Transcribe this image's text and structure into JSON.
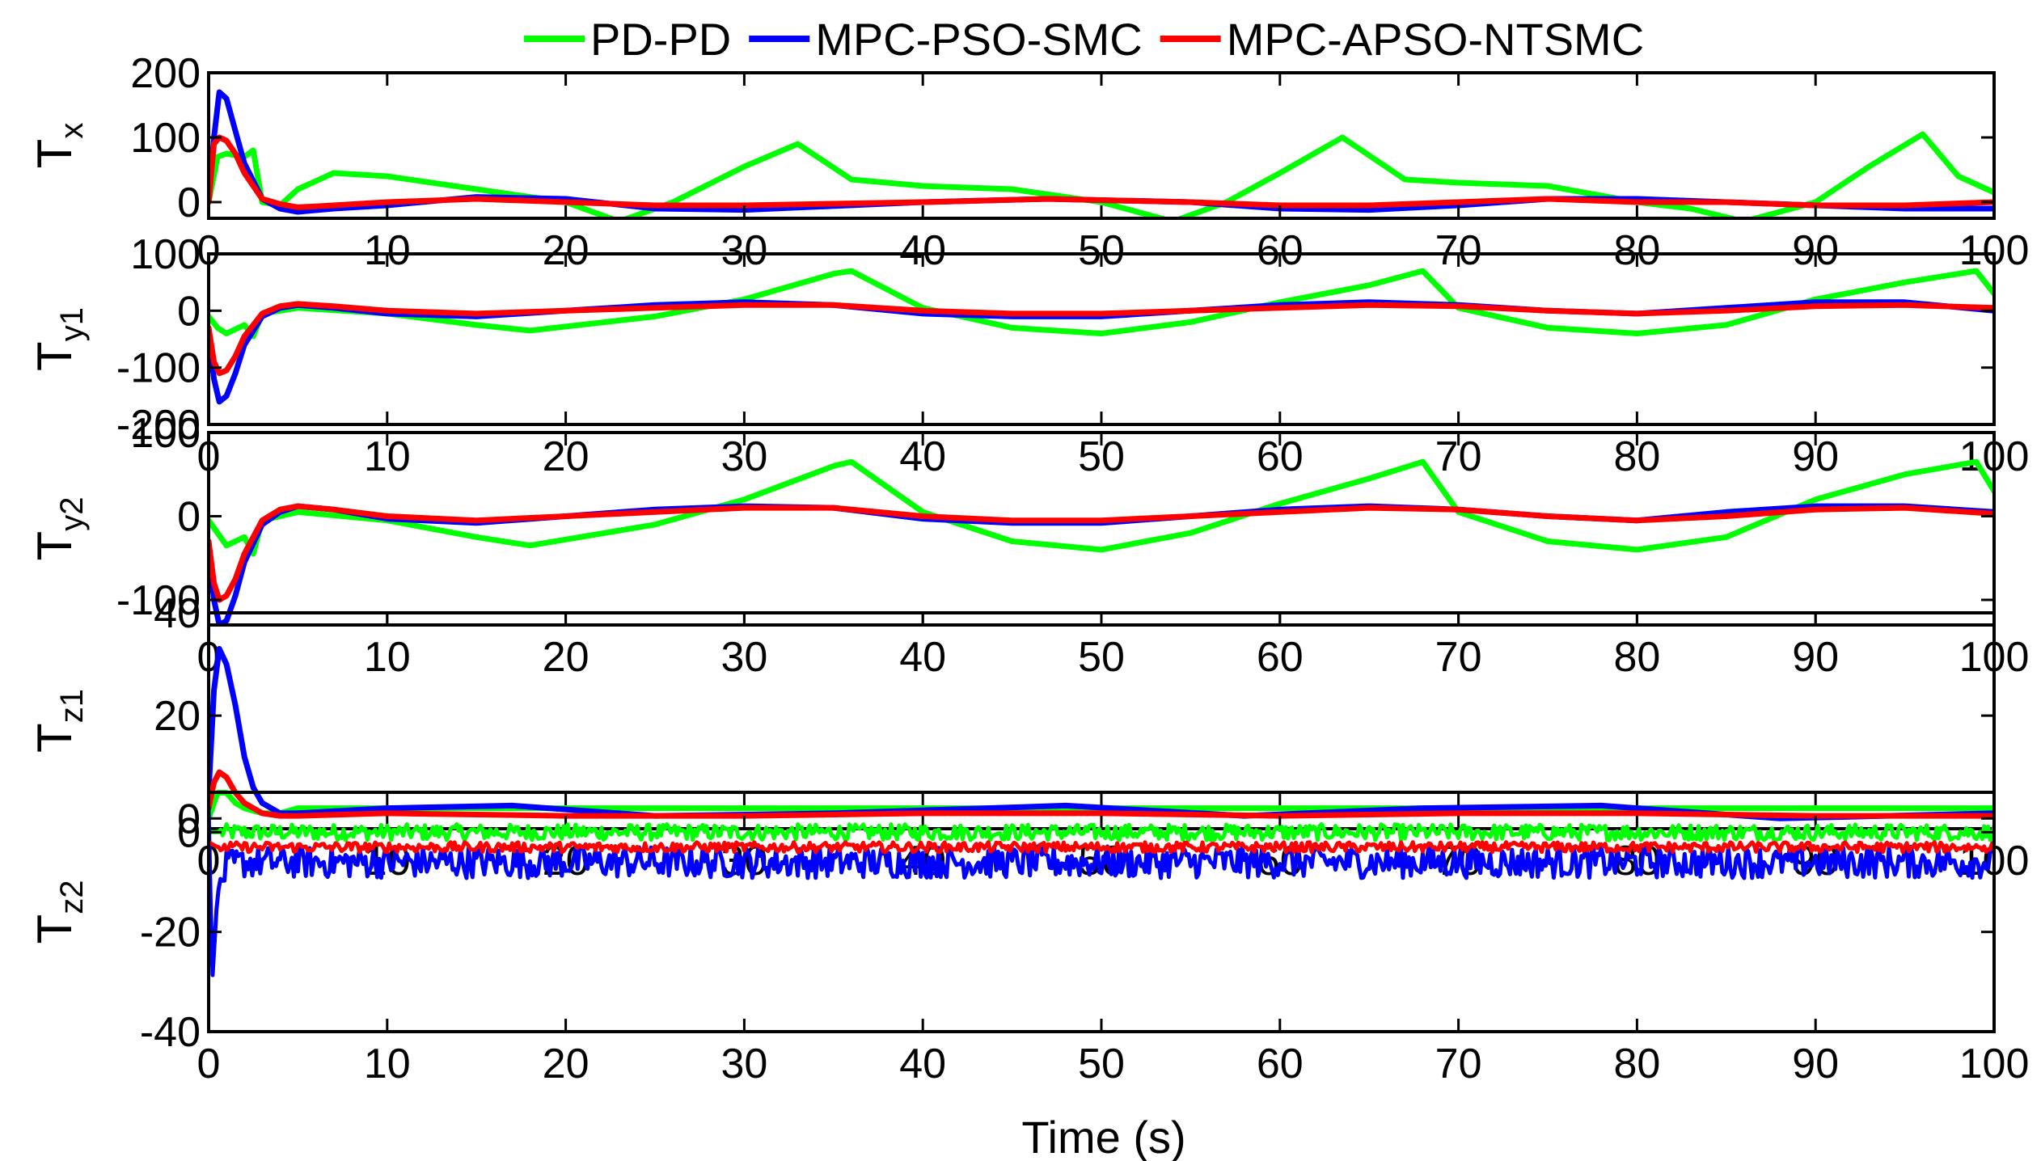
{
  "chart_data": {
    "type": "line",
    "xlabel": "Time (s)",
    "xlim": [
      0,
      100
    ],
    "xticks": [
      0,
      10,
      20,
      30,
      40,
      50,
      60,
      70,
      80,
      90,
      100
    ],
    "legend": {
      "placement": "top-center",
      "entries": [
        {
          "name": "PD-PD",
          "color": "#00ff00"
        },
        {
          "name": "MPC-PSO-SMC",
          "color": "#0000ff"
        },
        {
          "name": "MPC-APSO-NTSMC",
          "color": "#ff0000"
        }
      ]
    },
    "subplots": [
      {
        "id": "tx",
        "ylabel_main": "T",
        "ylabel_sub": "x",
        "ylim": [
          -25,
          200
        ],
        "yticks": [
          0,
          100,
          200
        ],
        "series": [
          {
            "name": "PD-PD",
            "x": [
              0,
              0.5,
              1,
              2,
              2.5,
              3,
              4,
              5,
              7,
              10,
              15,
              20,
              23,
              26,
              30,
              33,
              36,
              40,
              45,
              50,
              54,
              57,
              60,
              63.5,
              67,
              70,
              75,
              80,
              83,
              86,
              90,
              93,
              96,
              98,
              100
            ],
            "y": [
              0,
              70,
              75,
              70,
              80,
              0,
              -5,
              20,
              45,
              40,
              20,
              0,
              -30,
              0,
              55,
              90,
              35,
              25,
              20,
              0,
              -30,
              0,
              45,
              100,
              35,
              30,
              25,
              0,
              -10,
              -30,
              0,
              55,
              105,
              40,
              15
            ]
          },
          {
            "name": "MPC-PSO-SMC",
            "x": [
              0,
              0.3,
              0.6,
              1,
              1.5,
              2,
              3,
              4,
              5,
              7,
              10,
              15,
              20,
              25,
              30,
              40,
              47,
              55,
              60,
              65,
              70,
              75,
              80,
              85,
              90,
              95,
              100
            ],
            "y": [
              0,
              100,
              170,
              160,
              110,
              60,
              5,
              -10,
              -15,
              -10,
              -5,
              8,
              5,
              -10,
              -12,
              0,
              5,
              0,
              -10,
              -12,
              -5,
              5,
              5,
              0,
              -5,
              -10,
              -10
            ]
          },
          {
            "name": "MPC-APSO-NTSMC",
            "x": [
              0,
              0.3,
              0.6,
              1,
              1.5,
              2,
              3,
              4,
              5,
              7,
              10,
              15,
              20,
              25,
              30,
              40,
              47,
              55,
              60,
              65,
              70,
              75,
              80,
              85,
              90,
              95,
              100
            ],
            "y": [
              0,
              90,
              100,
              95,
              75,
              45,
              5,
              -3,
              -8,
              -5,
              0,
              5,
              0,
              -5,
              -5,
              0,
              5,
              0,
              -5,
              -5,
              0,
              5,
              0,
              0,
              -5,
              -5,
              0
            ]
          }
        ]
      },
      {
        "id": "ty1",
        "ylabel_main": "T",
        "ylabel_sub": "y1",
        "ylim": [
          -200,
          100
        ],
        "yticks": [
          -200,
          -100,
          0,
          100
        ],
        "series": [
          {
            "name": "PD-PD",
            "x": [
              0,
              0.5,
              1,
              2,
              2.5,
              3,
              5,
              10,
              15,
              18,
              25,
              30,
              35,
              36,
              40,
              45,
              50,
              55,
              60,
              65,
              68,
              70,
              75,
              80,
              85,
              90,
              95,
              99,
              100
            ],
            "y": [
              -10,
              -30,
              -40,
              -25,
              -45,
              -5,
              5,
              -5,
              -25,
              -35,
              -10,
              20,
              65,
              70,
              5,
              -30,
              -40,
              -20,
              15,
              45,
              70,
              5,
              -30,
              -40,
              -25,
              20,
              50,
              70,
              30
            ]
          },
          {
            "name": "MPC-PSO-SMC",
            "x": [
              0,
              0.3,
              0.6,
              1,
              1.5,
              2,
              3,
              4,
              5,
              7,
              10,
              15,
              20,
              25,
              30,
              35,
              40,
              45,
              50,
              55,
              60,
              65,
              70,
              75,
              80,
              85,
              90,
              95,
              100
            ],
            "y": [
              -40,
              -120,
              -160,
              -150,
              -110,
              -60,
              -10,
              5,
              10,
              5,
              -5,
              -10,
              0,
              10,
              15,
              10,
              -5,
              -10,
              -10,
              0,
              10,
              15,
              10,
              0,
              -5,
              5,
              15,
              15,
              0
            ]
          },
          {
            "name": "MPC-APSO-NTSMC",
            "x": [
              0,
              0.3,
              0.6,
              1,
              1.5,
              2,
              3,
              4,
              5,
              7,
              10,
              15,
              20,
              25,
              30,
              35,
              40,
              45,
              50,
              55,
              60,
              65,
              70,
              75,
              80,
              85,
              90,
              95,
              100
            ],
            "y": [
              -30,
              -90,
              -110,
              -105,
              -80,
              -45,
              -5,
              8,
              12,
              8,
              0,
              -5,
              0,
              5,
              10,
              10,
              0,
              -5,
              -5,
              0,
              5,
              10,
              8,
              0,
              -5,
              0,
              8,
              10,
              5
            ]
          }
        ]
      },
      {
        "id": "ty2",
        "ylabel_main": "T",
        "ylabel_sub": "y2",
        "ylim": [
          -130,
          100
        ],
        "yticks": [
          -100,
          0,
          100
        ],
        "series": [
          {
            "name": "PD-PD",
            "x": [
              0,
              0.5,
              1,
              2,
              2.5,
              3,
              5,
              10,
              15,
              18,
              25,
              30,
              35,
              36,
              40,
              45,
              50,
              55,
              60,
              65,
              68,
              70,
              75,
              80,
              85,
              90,
              95,
              99,
              100
            ],
            "y": [
              -5,
              -20,
              -35,
              -25,
              -45,
              -5,
              5,
              -5,
              -25,
              -35,
              -10,
              20,
              60,
              65,
              5,
              -30,
              -40,
              -20,
              15,
              45,
              65,
              5,
              -30,
              -40,
              -25,
              20,
              50,
              65,
              30
            ]
          },
          {
            "name": "MPC-PSO-SMC",
            "x": [
              0,
              0.3,
              0.6,
              1,
              1.5,
              2,
              3,
              4,
              5,
              7,
              10,
              15,
              20,
              25,
              30,
              35,
              40,
              45,
              50,
              55,
              60,
              65,
              70,
              75,
              80,
              85,
              90,
              95,
              100
            ],
            "y": [
              -40,
              -100,
              -130,
              -125,
              -95,
              -55,
              -10,
              5,
              12,
              8,
              -3,
              -8,
              0,
              8,
              12,
              10,
              -3,
              -8,
              -8,
              0,
              8,
              12,
              8,
              0,
              -5,
              5,
              12,
              12,
              5
            ]
          },
          {
            "name": "MPC-APSO-NTSMC",
            "x": [
              0,
              0.3,
              0.6,
              1,
              1.5,
              2,
              3,
              4,
              5,
              7,
              10,
              15,
              20,
              25,
              30,
              35,
              40,
              45,
              50,
              55,
              60,
              65,
              70,
              75,
              80,
              85,
              90,
              95,
              100
            ],
            "y": [
              -30,
              -80,
              -100,
              -95,
              -75,
              -45,
              -5,
              8,
              12,
              8,
              0,
              -5,
              0,
              5,
              10,
              10,
              0,
              -5,
              -5,
              0,
              5,
              10,
              8,
              0,
              -5,
              0,
              8,
              10,
              3
            ]
          }
        ]
      },
      {
        "id": "tz1",
        "ylabel_main": "T",
        "ylabel_sub": "z1",
        "ylim": [
          -2,
          40
        ],
        "yticks": [
          0,
          20,
          40
        ],
        "series": [
          {
            "name": "PD-PD",
            "x": [
              0,
              0.5,
              1,
              1.5,
              2,
              3,
              4,
              5,
              10,
              20,
              30,
              40,
              50,
              60,
              70,
              80,
              90,
              100
            ],
            "y": [
              0,
              5,
              5,
              3,
              2,
              1,
              1,
              2,
              2,
              2,
              2,
              2,
              2,
              2,
              2,
              2,
              2,
              2
            ]
          },
          {
            "name": "MPC-PSO-SMC",
            "x": [
              0,
              0.3,
              0.6,
              1,
              1.5,
              2,
              2.5,
              3,
              4,
              5,
              10,
              17,
              25,
              35,
              48,
              58,
              68,
              78,
              88,
              100
            ],
            "y": [
              5,
              25,
              33,
              30,
              22,
              12,
              6,
              3,
              1,
              1,
              2,
              2.5,
              0.5,
              1,
              2.5,
              0.5,
              2,
              2.5,
              0,
              1
            ]
          },
          {
            "name": "MPC-APSO-NTSMC",
            "x": [
              0,
              0.3,
              0.6,
              1,
              1.5,
              2,
              3,
              4,
              5,
              10,
              20,
              30,
              40,
              50,
              60,
              70,
              80,
              90,
              100
            ],
            "y": [
              2,
              7,
              9,
              8,
              5,
              3,
              1,
              0.5,
              0.5,
              1,
              0.5,
              0.5,
              1,
              1,
              0.5,
              1,
              1,
              0.5,
              0.5
            ]
          }
        ]
      },
      {
        "id": "tz2",
        "ylabel_main": "T",
        "ylabel_sub": "z2",
        "ylim": [
          -40,
          8
        ],
        "yticks": [
          -40,
          -20,
          0
        ],
        "series": [
          {
            "name": "PD-PD",
            "x": [
              0,
              0.5,
              100
            ],
            "y": [
              0,
              0,
              0
            ],
            "noise": 1.6
          },
          {
            "name": "MPC-PSO-SMC",
            "x": [
              0,
              0.2,
              0.5,
              1,
              2,
              100
            ],
            "y": [
              5,
              -30,
              -12,
              -7,
              -6,
              -6
            ],
            "noise": 3.2
          },
          {
            "name": "MPC-APSO-NTSMC",
            "x": [
              0,
              0.5,
              100
            ],
            "y": [
              -2,
              -3,
              -3
            ],
            "noise": 1.0
          }
        ]
      }
    ]
  }
}
